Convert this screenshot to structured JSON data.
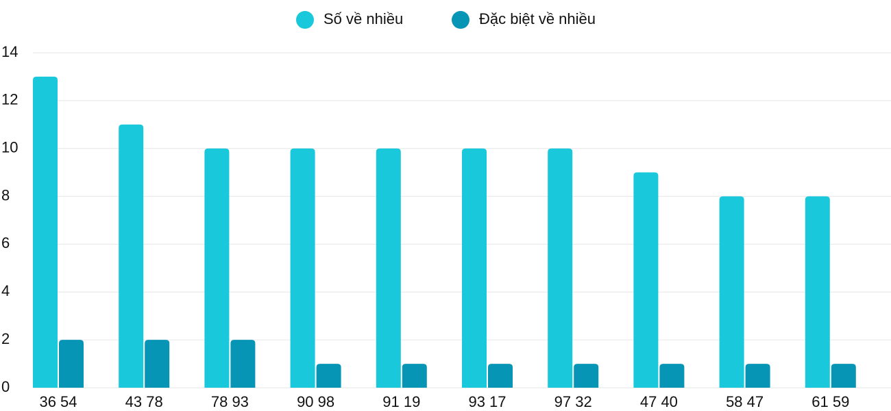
{
  "chart_data": {
    "type": "bar",
    "categories": [
      "36 54",
      "43 78",
      "78 93",
      "90 98",
      "91 19",
      "93 17",
      "97 32",
      "47 40",
      "58 47",
      "61 59"
    ],
    "series": [
      {
        "name": "Số về nhiều",
        "color": "#1ac8db",
        "values": [
          13,
          11,
          10,
          10,
          10,
          10,
          10,
          9,
          8,
          8
        ]
      },
      {
        "name": "Đặc biệt về nhiều",
        "color": "#0795b6",
        "values": [
          2,
          2,
          2,
          1,
          1,
          1,
          1,
          1,
          1,
          1
        ]
      }
    ],
    "ylim": [
      0,
      14
    ],
    "yticks": [
      0,
      2,
      4,
      6,
      8,
      10,
      12,
      14
    ],
    "grid": true,
    "legend": "top"
  }
}
